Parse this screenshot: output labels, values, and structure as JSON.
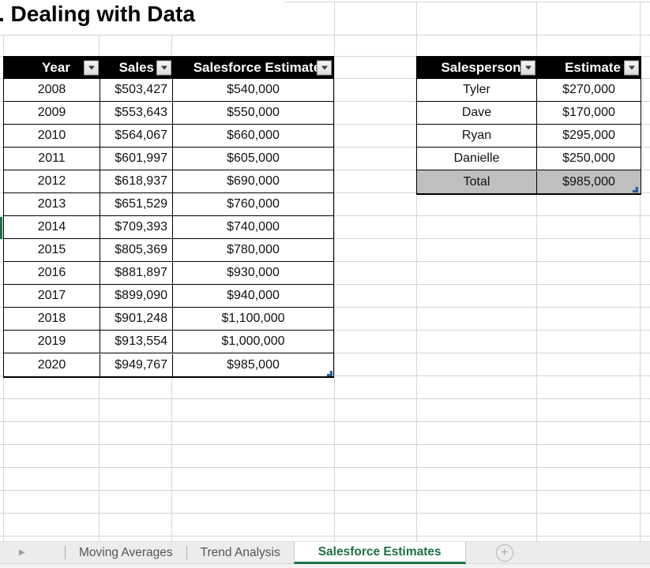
{
  "title": ". Dealing with Data",
  "colors": {
    "header_bg": "#000000",
    "header_text": "#ffffff",
    "total_row_bg": "#bfbfbf",
    "accent_green": "#1e7145",
    "handle_blue": "#2d5a9d",
    "gridline": "#d6d6d6"
  },
  "sales_table": {
    "columns": [
      "Year",
      "Sales",
      "Salesforce Estimate"
    ],
    "rows": [
      [
        "2008",
        "$503,427",
        "$540,000"
      ],
      [
        "2009",
        "$553,643",
        "$550,000"
      ],
      [
        "2010",
        "$564,067",
        "$660,000"
      ],
      [
        "2011",
        "$601,997",
        "$605,000"
      ],
      [
        "2012",
        "$618,937",
        "$690,000"
      ],
      [
        "2013",
        "$651,529",
        "$760,000"
      ],
      [
        "2014",
        "$709,393",
        "$740,000"
      ],
      [
        "2015",
        "$805,369",
        "$780,000"
      ],
      [
        "2016",
        "$881,897",
        "$930,000"
      ],
      [
        "2017",
        "$899,090",
        "$940,000"
      ],
      [
        "2018",
        "$901,248",
        "$1,100,000"
      ],
      [
        "2019",
        "$913,554",
        "$1,000,000"
      ],
      [
        "2020",
        "$949,767",
        "$985,000"
      ]
    ]
  },
  "estimates_table": {
    "columns": [
      "Salesperson",
      "Estimate"
    ],
    "rows": [
      [
        "Tyler",
        "$270,000"
      ],
      [
        "Dave",
        "$170,000"
      ],
      [
        "Ryan",
        "$295,000"
      ],
      [
        "Danielle",
        "$250,000"
      ],
      [
        "Total",
        "$985,000"
      ]
    ],
    "total_row_label": "Total",
    "total_row_value": "$985,000"
  },
  "sheet_tabs": {
    "tabs": [
      {
        "label": "Moving Averages",
        "active": false
      },
      {
        "label": "Trend Analysis",
        "active": false
      },
      {
        "label": "Salesforce Estimates",
        "active": true
      }
    ]
  },
  "icons": {
    "nav_arrow": "▶",
    "add_sheet": "+",
    "filter_dropdown": "▼"
  }
}
